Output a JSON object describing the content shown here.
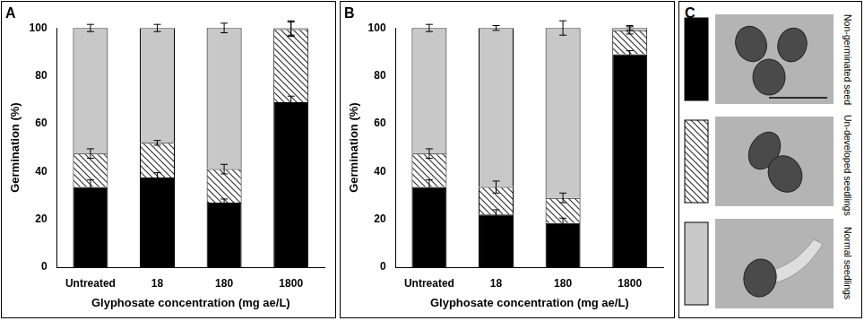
{
  "chart_data": [
    {
      "type": "bar",
      "title": "A",
      "stacked": true,
      "grid": false,
      "x_label": "Glyphosate concentration (mg ae/L)",
      "y_label": "Germination (%)",
      "categories": [
        "Untreated",
        "18",
        "180",
        "1800"
      ],
      "ylim": [
        0,
        100
      ],
      "yticks": [
        0,
        20,
        40,
        60,
        80,
        100
      ],
      "series": [
        {
          "name": "Non-germinated seed",
          "color": "#000000",
          "values": [
            33.5,
            37.5,
            27,
            69
          ],
          "errors": [
            3,
            2,
            1.5,
            2.5
          ]
        },
        {
          "name": "Un-developed seedlings",
          "color": "#333333",
          "line_style": "hatch",
          "values": [
            14,
            14.5,
            14,
            30.5
          ],
          "errors": [
            2,
            1,
            2,
            3
          ]
        },
        {
          "name": "Normal seedlings",
          "color": "#c8c8c8",
          "values": [
            52.5,
            48,
            59,
            0.5
          ],
          "errors": [
            1.5,
            1.5,
            2,
            3
          ]
        }
      ]
    },
    {
      "type": "bar",
      "title": "B",
      "stacked": true,
      "grid": false,
      "x_label": "Glyphosate concentration (mg ae/L)",
      "y_label": "Germination (%)",
      "categories": [
        "Untreated",
        "18",
        "180",
        "1800"
      ],
      "ylim": [
        0,
        100
      ],
      "yticks": [
        0,
        20,
        40,
        60,
        80,
        100
      ],
      "series": [
        {
          "name": "Non-germinated seed",
          "color": "#000000",
          "values": [
            33.5,
            22,
            18.5,
            89
          ],
          "errors": [
            3,
            2,
            2,
            1.5
          ]
        },
        {
          "name": "Un-developed seedlings",
          "color": "#333333",
          "line_style": "hatch",
          "values": [
            14,
            11.5,
            10.5,
            10
          ],
          "errors": [
            2,
            2.5,
            2,
            1.5
          ]
        },
        {
          "name": "Normal seedlings",
          "color": "#c8c8c8",
          "values": [
            52.5,
            66.5,
            71,
            1
          ],
          "errors": [
            1.5,
            1,
            3,
            1
          ]
        }
      ]
    }
  ],
  "panel_c": {
    "label": "C"
  }
}
